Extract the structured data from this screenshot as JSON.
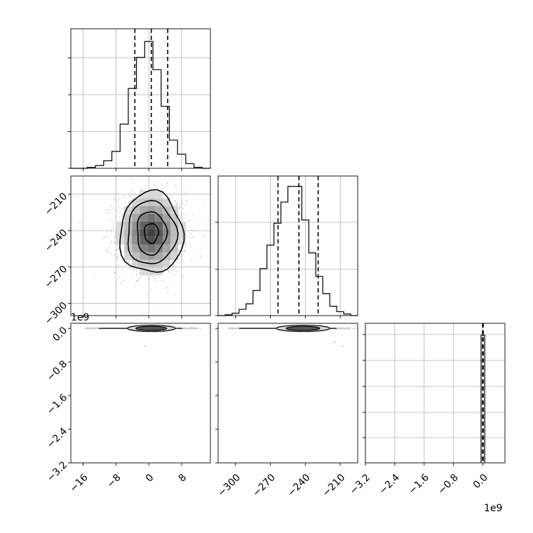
{
  "chart_data": [
    {
      "type": "histogram",
      "panel": "marginal-p1",
      "x_ticks": [
        "−16",
        "−8",
        "0",
        "8"
      ],
      "x_tick_values": [
        -16,
        -8,
        0,
        8
      ],
      "xlim": [
        -19,
        15
      ],
      "bins": [
        -19,
        -17,
        -15,
        -13,
        -11,
        -9,
        -7,
        -5,
        -3,
        -1,
        1,
        3,
        5,
        7,
        9,
        11,
        13,
        15
      ],
      "counts": [
        0,
        0,
        1,
        3,
        8,
        18,
        47,
        85,
        118,
        135,
        105,
        66,
        30,
        15,
        5,
        1,
        0
      ],
      "quantiles": [
        -3.4,
        0.6,
        4.6
      ],
      "grid": true
    },
    {
      "type": "histogram2d",
      "panel": "p1-vs-p2",
      "x_tick_values": [
        -16,
        -8,
        0,
        8
      ],
      "y_ticks": [
        "−210",
        "−240",
        "−270",
        "−300"
      ],
      "y_tick_values": [
        -210,
        -240,
        -270,
        -300
      ],
      "xlim": [
        -19,
        15
      ],
      "ylim": [
        -310,
        -195
      ],
      "center": [
        0.6,
        -242
      ],
      "contour_levels": [
        "inner",
        "mid1",
        "mid2",
        "outer"
      ],
      "grid": true
    },
    {
      "type": "histogram",
      "panel": "marginal-p2",
      "x_ticks": [
        "−300",
        "−270",
        "−240",
        "−210"
      ],
      "x_tick_values": [
        -300,
        -270,
        -240,
        -210
      ],
      "xlim": [
        -315,
        -195
      ],
      "bins": [
        -315,
        -309,
        -303,
        -297,
        -291,
        -285,
        -279,
        -273,
        -267,
        -261,
        -255,
        -249,
        -243,
        -237,
        -231,
        -225,
        -219,
        -213,
        -207,
        -201,
        -195
      ],
      "counts": [
        0,
        1,
        3,
        8,
        15,
        32,
        60,
        90,
        118,
        145,
        165,
        165,
        122,
        80,
        50,
        28,
        12,
        5,
        2,
        0
      ],
      "quantiles": [
        -263.5,
        -245.5,
        -229
      ],
      "grid": true
    },
    {
      "type": "histogram2d",
      "panel": "p1-vs-p3",
      "x_tick_values": [
        -16,
        -8,
        0,
        8
      ],
      "y_ticks": [
        "0.0",
        "−0.8",
        "−1.6",
        "−2.4",
        "−3.2"
      ],
      "y_tick_values": [
        0.0,
        -0.8,
        -1.6,
        -2.4,
        -3.2
      ],
      "y_offset_label": "1e9",
      "xlim": [
        -19,
        15
      ],
      "ylim": [
        -3.2,
        0.12
      ],
      "grid": false
    },
    {
      "type": "histogram2d",
      "panel": "p2-vs-p3",
      "x_tick_values": [
        -300,
        -270,
        -240,
        -210
      ],
      "y_tick_values": [
        0.0,
        -0.8,
        -1.6,
        -2.4,
        -3.2
      ],
      "xlim": [
        -315,
        -195
      ],
      "ylim": [
        -3.2,
        0.12
      ],
      "grid": false
    },
    {
      "type": "histogram",
      "panel": "marginal-p3",
      "x_ticks": [
        "−3.2",
        "−2.4",
        "−1.6",
        "−0.8",
        "0.0"
      ],
      "x_tick_values": [
        -3.2,
        -2.4,
        -1.6,
        -0.8,
        0.0
      ],
      "x_offset_label": "1e9",
      "xlim": [
        -3.2,
        0.6
      ],
      "bins": [
        -0.05,
        0.05
      ],
      "counts": [
        1
      ],
      "quantiles": [
        -0.01,
        0.0,
        0.01
      ],
      "grid": true
    }
  ],
  "offset_labels": {
    "left_p3_axis": "1e9",
    "bottom_p3_axis": "1e9"
  }
}
